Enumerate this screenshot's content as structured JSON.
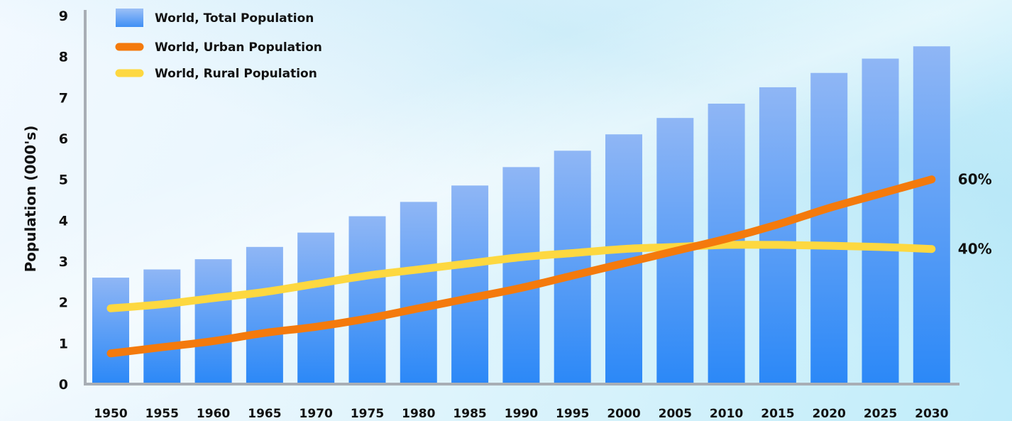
{
  "chart_data": {
    "type": "bar",
    "title": "",
    "xlabel": "",
    "ylabel": "Population (000's)",
    "ylim": [
      0,
      9
    ],
    "yticks": [
      0,
      1,
      2,
      3,
      4,
      5,
      6,
      7,
      8,
      9
    ],
    "grid": false,
    "legend_position": "top-left",
    "categories": [
      "1950",
      "1955",
      "1960",
      "1965",
      "1970",
      "1975",
      "1980",
      "1985",
      "1990",
      "1995",
      "2000",
      "2005",
      "2010",
      "2015",
      "2020",
      "2025",
      "2030"
    ],
    "series": [
      {
        "name": "World, Total Population",
        "type": "bar",
        "color": "#4a90f5",
        "values": [
          2.6,
          2.8,
          3.05,
          3.35,
          3.7,
          4.1,
          4.45,
          4.85,
          5.3,
          5.7,
          6.1,
          6.5,
          6.85,
          7.25,
          7.6,
          7.95,
          8.25
        ]
      },
      {
        "name": "World, Urban Population",
        "type": "line",
        "color": "#f47a0c",
        "values": [
          0.75,
          0.9,
          1.05,
          1.25,
          1.4,
          1.6,
          1.85,
          2.1,
          2.35,
          2.65,
          2.95,
          3.25,
          3.55,
          3.9,
          4.3,
          4.65,
          5.0
        ],
        "end_label": "60%"
      },
      {
        "name": "World, Rural Population",
        "type": "line",
        "color": "#fdd840",
        "values": [
          1.85,
          1.95,
          2.1,
          2.25,
          2.45,
          2.65,
          2.8,
          2.95,
          3.1,
          3.2,
          3.3,
          3.35,
          3.4,
          3.4,
          3.38,
          3.35,
          3.3
        ],
        "end_label": "40%"
      }
    ]
  }
}
